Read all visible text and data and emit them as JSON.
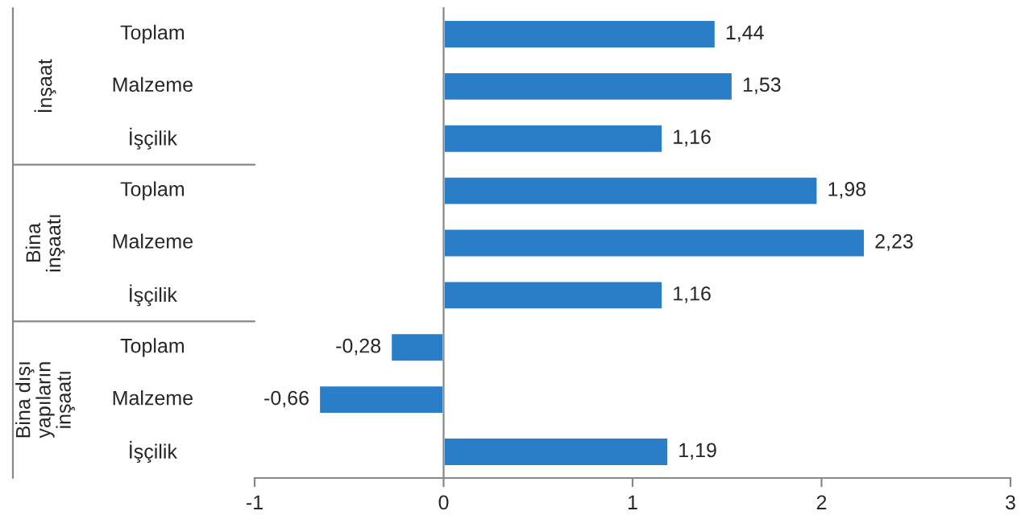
{
  "chart_data": {
    "type": "bar",
    "orientation": "horizontal",
    "categories": [
      "Toplam",
      "Malzeme",
      "İşçilik",
      "Toplam",
      "Malzeme",
      "İşçilik",
      "Toplam",
      "Malzeme",
      "İşçilik"
    ],
    "values": [
      1.44,
      1.53,
      1.16,
      1.98,
      2.23,
      1.16,
      -0.28,
      -0.66,
      1.19
    ],
    "value_labels": [
      "1,44",
      "1,53",
      "1,16",
      "1,98",
      "2,23",
      "1,16",
      "-0,28",
      "-0,66",
      "1,19"
    ],
    "color": "#2a7ec8",
    "annotations": [
      "İnşaat",
      "Bina\ninşaatı",
      "Bina dışı\nyapıların\ninşaatı"
    ],
    "xlim": [
      -1,
      3
    ],
    "xticks": [
      -1,
      0,
      1,
      2,
      3
    ]
  }
}
